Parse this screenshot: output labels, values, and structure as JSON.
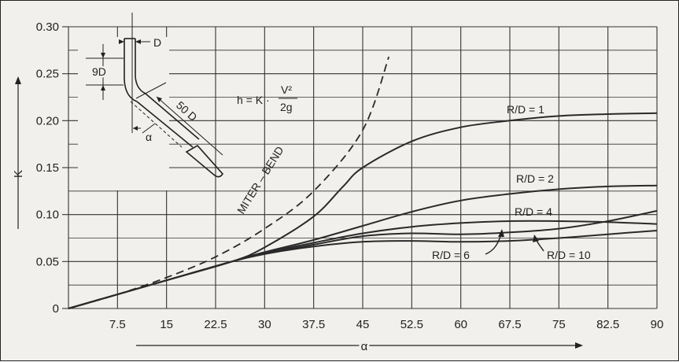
{
  "chart_data": {
    "type": "line",
    "xlabel": "α",
    "ylabel": "K",
    "xlim": [
      0,
      90
    ],
    "ylim": [
      0,
      0.3
    ],
    "x_ticks": [
      "7.5",
      "15",
      "22.5",
      "30",
      "37.5",
      "45",
      "52.5",
      "60",
      "67.5",
      "75",
      "82.5",
      "90"
    ],
    "y_ticks": [
      "0",
      "0.05",
      "0.10",
      "0.15",
      "0.20",
      "0.25",
      "0.30"
    ],
    "grid": true,
    "formula": "h = K · V²/2g",
    "series": [
      {
        "name": "MITER – BEND",
        "style": "dashed",
        "x": [
          0,
          7.5,
          15,
          22.5,
          30,
          37.5,
          45,
          49
        ],
        "y": [
          0,
          0.015,
          0.033,
          0.055,
          0.085,
          0.125,
          0.19,
          0.268
        ]
      },
      {
        "name": "R/D = 1",
        "x": [
          0,
          15,
          25,
          30,
          37.5,
          42,
          45,
          52.5,
          60,
          67.5,
          75,
          82.5,
          90
        ],
        "y": [
          0,
          0.03,
          0.05,
          0.065,
          0.098,
          0.13,
          0.15,
          0.178,
          0.193,
          0.2,
          0.205,
          0.207,
          0.208
        ]
      },
      {
        "name": "R/D = 2",
        "x": [
          0,
          15,
          25,
          30,
          37.5,
          45,
          52.5,
          60,
          67.5,
          75,
          82.5,
          90
        ],
        "y": [
          0,
          0.03,
          0.05,
          0.06,
          0.073,
          0.088,
          0.103,
          0.115,
          0.122,
          0.127,
          0.13,
          0.131
        ]
      },
      {
        "name": "R/D = 4",
        "x": [
          0,
          15,
          25,
          30,
          37.5,
          45,
          52.5,
          60,
          67.5,
          75,
          82.5,
          90
        ],
        "y": [
          0,
          0.03,
          0.05,
          0.059,
          0.07,
          0.08,
          0.087,
          0.091,
          0.093,
          0.093,
          0.092,
          0.09
        ]
      },
      {
        "name": "R/D = 6",
        "x": [
          0,
          15,
          25,
          30,
          37.5,
          45,
          52.5,
          60,
          67.5,
          75,
          82.5,
          90
        ],
        "y": [
          0,
          0.03,
          0.05,
          0.058,
          0.066,
          0.071,
          0.072,
          0.071,
          0.072,
          0.075,
          0.079,
          0.083
        ]
      },
      {
        "name": "R/D = 10",
        "x": [
          0,
          15,
          25,
          30,
          37.5,
          45,
          52.5,
          60,
          67.5,
          75,
          82.5,
          90
        ],
        "y": [
          0,
          0.03,
          0.05,
          0.058,
          0.068,
          0.077,
          0.08,
          0.079,
          0.081,
          0.085,
          0.093,
          0.104
        ]
      }
    ],
    "inset": {
      "labels": {
        "d": "D",
        "nine_d": "9D",
        "fifty_d": "50 D",
        "alpha": "α"
      }
    }
  }
}
